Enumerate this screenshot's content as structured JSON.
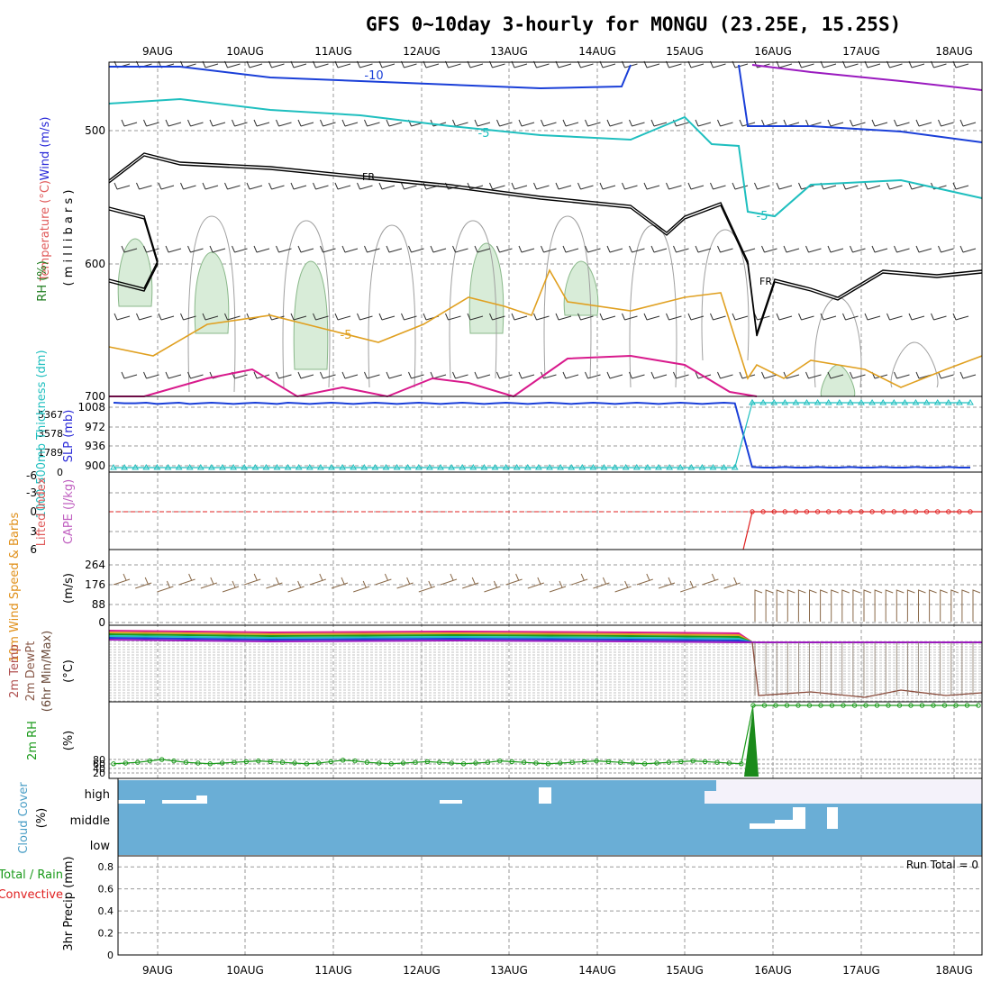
{
  "title": "GFS 0~10day 3-hourly for MONGU (23.25E, 15.25S)",
  "dates": [
    "9AUG",
    "10AUG",
    "11AUG",
    "12AUG",
    "13AUG",
    "14AUG",
    "15AUG",
    "16AUG",
    "17AUG",
    "18AUG"
  ],
  "colors": {
    "wind": "#1a3fd8",
    "temp_warm": "#d81a8c",
    "temp_purple": "#9a1abf",
    "cyan": "#1fbfbf",
    "orange": "#e0a020",
    "rh_fill": "#d8ecd8",
    "green": "#1a9a1a",
    "red": "#e02020",
    "cloud": "#6aaed6",
    "wind10_speed": "#e0901a",
    "barb": "#8a6a4a"
  },
  "chart_data": [
    {
      "type": "line",
      "panel": "upper_air",
      "labels": {
        "wind": "Wind (m/s)",
        "temperature": "Temperature (°C)",
        "rh": "RH (%)",
        "pressure": "( m i l l i b a r s )"
      },
      "y_ticks": [
        "500",
        "600",
        "700"
      ],
      "contour_labels": [
        "-10",
        "-5",
        "-5",
        "FR",
        "FR",
        "-5"
      ],
      "annotations": {
        "freezing_level": "FR"
      }
    },
    {
      "type": "line",
      "panel": "slp_thickness",
      "labels": {
        "slp": "SLP (mb)",
        "thickness": "1000-500mb Thickness (dm)"
      },
      "y_ticks_left": [
        "5367",
        "3578",
        "1789",
        "0"
      ],
      "y_ticks_right": [
        "1008",
        "972",
        "936",
        "900"
      ],
      "slp_series": [
        1008,
        1007,
        1007,
        1008,
        1006,
        1007,
        1008,
        1006,
        1007,
        1008,
        1007,
        1006,
        1007,
        1008,
        1007,
        1006,
        1008,
        1007,
        1006,
        1007,
        1008,
        1007,
        1006,
        1007,
        1008,
        1007,
        1006,
        1007,
        1008,
        1007,
        1006,
        1007,
        1008,
        1007,
        1006,
        1007,
        1008,
        1007,
        1006,
        1007,
        1008,
        1007,
        1006,
        1007,
        1008,
        1007,
        1006,
        1007,
        1008,
        1007,
        1006,
        1007,
        1008,
        1007,
        1006,
        1007,
        1008,
        1007,
        1006,
        1007,
        1008,
        1007,
        1006,
        1007,
        1008,
        1007,
        1006,
        1007,
        1008,
        1007,
        1006,
        1007,
        1008,
        1007,
        1006,
        1007,
        1008,
        1007,
        1006,
        1007,
        1008
      ],
      "thickness_before": 0,
      "thickness_after": 5367,
      "slp_after": 900
    },
    {
      "type": "line",
      "panel": "stability",
      "labels": {
        "cape": "CAPE (J/kg)",
        "li": "Lifted Index"
      },
      "y_ticks": [
        "-6",
        "-3",
        "0",
        "3",
        "6"
      ],
      "li_after": 0
    },
    {
      "type": "line",
      "panel": "wind10m",
      "labels": {
        "speed": "10m Wind Speed & Barbs",
        "units": "(m/s)"
      },
      "y_ticks": [
        "264",
        "176",
        "88",
        "0"
      ],
      "speed_before": 0,
      "speed_after": [
        290,
        290,
        291,
        288,
        287,
        290,
        292,
        294,
        293,
        291,
        290,
        289,
        288,
        289,
        291,
        294,
        296,
        293,
        290,
        288,
        286,
        288,
        290,
        292,
        290
      ]
    },
    {
      "type": "line",
      "panel": "temp2m",
      "labels": {
        "temp": "2m Temp",
        "dewpt": "2m DewPt",
        "minmax": "(6hr Min/Max)",
        "units": "(°C)"
      }
    },
    {
      "type": "line",
      "panel": "rh2m",
      "labels": {
        "rh": "2m RH",
        "units": "(%)"
      },
      "y_ticks": [
        "80",
        "60",
        "40",
        "20"
      ],
      "rh_before": [
        18,
        19,
        20,
        22,
        24,
        22,
        20,
        19,
        18,
        19,
        20,
        21,
        22,
        21,
        20,
        19,
        18,
        19,
        21,
        23,
        22,
        20,
        19,
        18,
        19,
        20,
        21,
        20,
        19,
        18,
        19,
        20,
        22,
        21,
        20,
        19,
        18,
        19,
        20,
        21,
        22,
        21,
        20,
        19,
        18,
        19,
        20,
        21,
        22,
        21,
        20,
        19,
        18
      ],
      "rh_after": 100
    },
    {
      "type": "area",
      "panel": "cloud",
      "labels": {
        "cloud": "Cloud Cover",
        "units": "(%)"
      },
      "levels": [
        "high",
        "middle",
        "low"
      ]
    },
    {
      "type": "bar",
      "panel": "precip",
      "labels": {
        "precip": "3hr Precip (mm)",
        "rain": "Total / Rain",
        "convective": "Convective",
        "run_total": "Run Total = 0"
      },
      "y_ticks": [
        "0.8",
        "0.6",
        "0.4",
        "0.2",
        "0"
      ],
      "ylim": [
        0,
        0.9
      ],
      "values": []
    }
  ]
}
